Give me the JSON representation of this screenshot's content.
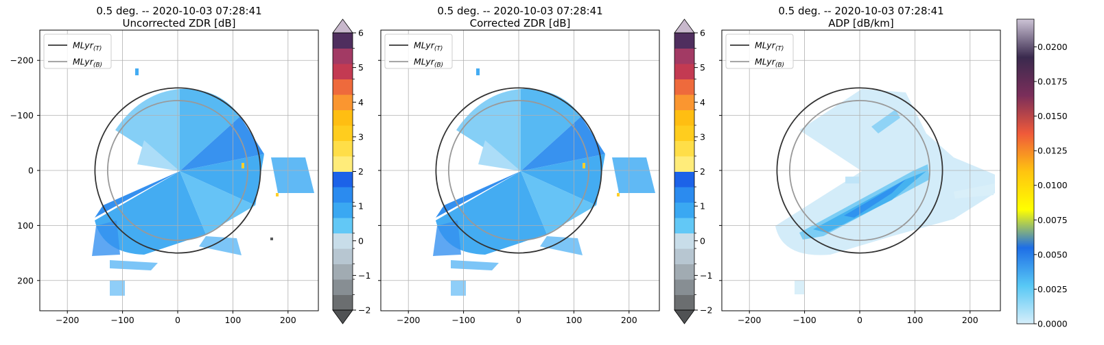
{
  "panels": [
    {
      "title_line1": "0.5 deg. -- 2020-10-03 07:28:41",
      "title_line2": "Uncorrected ZDR [dB]",
      "xticks": [
        "−200",
        "−100",
        "0",
        "100",
        "200"
      ],
      "yticks": [
        "200",
        "100",
        "0",
        "−100",
        "−200"
      ],
      "legend": [
        {
          "label": "MLyr(T)",
          "color": "#333333"
        },
        {
          "label": "MLyr(B)",
          "color": "#999999"
        }
      ],
      "colorbar": {
        "ticks": [
          "6",
          "5",
          "4",
          "3",
          "2",
          "1",
          "0",
          "−1",
          "−2"
        ],
        "min": -2,
        "max": 6,
        "colors": [
          "#6b6e70",
          "#878e93",
          "#a1abb2",
          "#b7c6d1",
          "#c8dde9",
          "#62c8f6",
          "#3aa8f2",
          "#2b8bef",
          "#1c62e8",
          "#ffec7a",
          "#ffde48",
          "#ffcd1e",
          "#ffbe12",
          "#fa9630",
          "#ee6a3c",
          "#c33a52",
          "#a23a64",
          "#4f2e5e"
        ],
        "under_color": "#505254",
        "over_color": "#c8b8cc"
      }
    },
    {
      "title_line1": "0.5 deg. -- 2020-10-03 07:28:41",
      "title_line2": "Corrected ZDR [dB]",
      "xticks": [
        "−200",
        "−100",
        "0",
        "100",
        "200"
      ],
      "legend": [
        {
          "label": "MLyr(T)",
          "color": "#333333"
        },
        {
          "label": "MLyr(B)",
          "color": "#999999"
        }
      ],
      "colorbar": {
        "ticks": [
          "6",
          "5",
          "4",
          "3",
          "2",
          "1",
          "0",
          "−1",
          "−2"
        ],
        "min": -2,
        "max": 6,
        "colors": [
          "#6b6e70",
          "#878e93",
          "#a1abb2",
          "#b7c6d1",
          "#c8dde9",
          "#62c8f6",
          "#3aa8f2",
          "#2b8bef",
          "#1c62e8",
          "#ffec7a",
          "#ffde48",
          "#ffcd1e",
          "#ffbe12",
          "#fa9630",
          "#ee6a3c",
          "#c33a52",
          "#a23a64",
          "#4f2e5e"
        ],
        "under_color": "#505254",
        "over_color": "#c8b8cc"
      }
    },
    {
      "title_line1": "0.5 deg. -- 2020-10-03 07:28:41",
      "title_line2": "ADP [dB/km]",
      "xticks": [
        "−200",
        "−100",
        "0",
        "100",
        "200"
      ],
      "legend": [
        {
          "label": "MLyr(T)",
          "color": "#333333"
        },
        {
          "label": "MLyr(B)",
          "color": "#999999"
        }
      ],
      "colorbar": {
        "ticks": [
          "0.0200",
          "0.0175",
          "0.0150",
          "0.0125",
          "0.0100",
          "0.0075",
          "0.0050",
          "0.0025",
          "0.0000"
        ],
        "min": 0.0,
        "max": 0.022,
        "gradient": [
          "#d6eefa",
          "#58c8f5",
          "#1e6ee6",
          "#ffff00",
          "#ffc410",
          "#ef5a3a",
          "#7a2e5a",
          "#3a2a4e",
          "#cdc4d6"
        ]
      }
    }
  ],
  "chart_data": [
    {
      "type": "heatmap",
      "title": "0.5 deg. -- 2020-10-03 07:28:41 Uncorrected ZDR [dB]",
      "xlim": [
        -250,
        255
      ],
      "ylim": [
        -255,
        255
      ],
      "x_ticks": [
        -200,
        -100,
        0,
        100,
        200
      ],
      "y_ticks": [
        -200,
        -100,
        0,
        100,
        200
      ],
      "grid": true,
      "legend_position": "top-left",
      "series": [
        {
          "name": "MLyr(T)",
          "shape": "circle",
          "center": [
            0,
            0
          ],
          "radius_km": 150
        },
        {
          "name": "MLyr(B)",
          "shape": "circle",
          "center": [
            0,
            0
          ],
          "radius_km": 127
        }
      ],
      "colorbar_range": [
        -2,
        6
      ]
    },
    {
      "type": "heatmap",
      "title": "0.5 deg. -- 2020-10-03 07:28:41 Corrected ZDR [dB]",
      "xlim": [
        -250,
        255
      ],
      "ylim": [
        -255,
        255
      ],
      "x_ticks": [
        -200,
        -100,
        0,
        100,
        200
      ],
      "y_ticks": [
        -200,
        -100,
        0,
        100,
        200
      ],
      "grid": true,
      "legend_position": "top-left",
      "series": [
        {
          "name": "MLyr(T)",
          "shape": "circle",
          "center": [
            0,
            0
          ],
          "radius_km": 150
        },
        {
          "name": "MLyr(B)",
          "shape": "circle",
          "center": [
            0,
            0
          ],
          "radius_km": 127
        }
      ],
      "colorbar_range": [
        -2,
        6
      ]
    },
    {
      "type": "heatmap",
      "title": "0.5 deg. -- 2020-10-03 07:28:41 ADP [dB/km]",
      "xlim": [
        -250,
        255
      ],
      "ylim": [
        -255,
        255
      ],
      "x_ticks": [
        -200,
        -100,
        0,
        100,
        200
      ],
      "y_ticks": [
        -200,
        -100,
        0,
        100,
        200
      ],
      "grid": true,
      "legend_position": "top-left",
      "series": [
        {
          "name": "MLyr(T)",
          "shape": "circle",
          "center": [
            0,
            0
          ],
          "radius_km": 150
        },
        {
          "name": "MLyr(B)",
          "shape": "circle",
          "center": [
            0,
            0
          ],
          "radius_km": 127
        }
      ],
      "colorbar_range": [
        0.0,
        0.022
      ]
    }
  ]
}
